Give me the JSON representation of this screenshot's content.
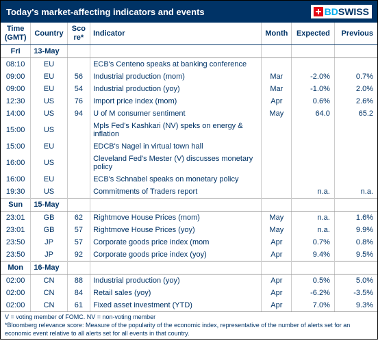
{
  "header": {
    "title": "Today's market-affecting indicators and events",
    "logo_bd": "BD",
    "logo_swiss": "SWISS"
  },
  "columns": {
    "time": "Time (GMT)",
    "country": "Country",
    "score": "Sco  re*",
    "indicator": "Indicator",
    "month": "Month",
    "expected": "Expected",
    "previous": "Previous"
  },
  "sections": [
    {
      "day_label": "Fri",
      "date_label": "13-May",
      "rows": [
        {
          "time": "08:10",
          "country": "EU",
          "score": "",
          "indicator": "ECB's Centeno speaks at banking conference",
          "month": "",
          "expected": "",
          "previous": ""
        },
        {
          "time": "09:00",
          "country": "EU",
          "score": "56",
          "indicator": "Industrial production (mom)",
          "month": "Mar",
          "expected": "-2.0%",
          "previous": "0.7%"
        },
        {
          "time": "09:00",
          "country": "EU",
          "score": "54",
          "indicator": "Industrial production (yoy)",
          "month": "Mar",
          "expected": "-1.0%",
          "previous": "2.0%"
        },
        {
          "time": "12:30",
          "country": "US",
          "score": "76",
          "indicator": "Import price index (mom)",
          "month": "Apr",
          "expected": "0.6%",
          "previous": "2.6%"
        },
        {
          "time": "14:00",
          "country": "US",
          "score": "94",
          "indicator": "U of M consumer sentiment",
          "month": "May",
          "expected": "64.0",
          "previous": "65.2"
        },
        {
          "time": "15:00",
          "country": "US",
          "score": "",
          "indicator": "Mpls Fed's Kashkari (NV) speks on energy & inflation",
          "month": "",
          "expected": "",
          "previous": ""
        },
        {
          "time": "15:00",
          "country": "EU",
          "score": "",
          "indicator": "EDCB's Nagel in virtual town hall",
          "month": "",
          "expected": "",
          "previous": ""
        },
        {
          "time": "16:00",
          "country": "US",
          "score": "",
          "indicator": "Cleveland Fed's Mester (V) discusses monetary policy",
          "month": "",
          "expected": "",
          "previous": ""
        },
        {
          "time": "16:00",
          "country": "EU",
          "score": "",
          "indicator": "ECB's Schnabel speaks on monetary policy",
          "month": "",
          "expected": "",
          "previous": ""
        },
        {
          "time": "19:30",
          "country": "US",
          "score": "",
          "indicator": "Commitments of Traders  report",
          "month": "",
          "expected": "n.a.",
          "previous": "n.a."
        }
      ]
    },
    {
      "day_label": "Sun",
      "date_label": "15-May",
      "rows": [
        {
          "time": "23:01",
          "country": "GB",
          "score": "62",
          "indicator": "Rightmove House Prices (mom)",
          "month": "May",
          "expected": "n.a.",
          "previous": "1.6%"
        },
        {
          "time": "23:01",
          "country": "GB",
          "score": "57",
          "indicator": "Rightmove House Prices (yoy)",
          "month": "May",
          "expected": "n.a.",
          "previous": "9.9%"
        },
        {
          "time": "23:50",
          "country": "JP",
          "score": "57",
          "indicator": "Corporate goods price index (mom",
          "month": "Apr",
          "expected": "0.7%",
          "previous": "0.8%"
        },
        {
          "time": "23:50",
          "country": "JP",
          "score": "92",
          "indicator": "Corporate goods price index (yoy)",
          "month": "Apr",
          "expected": "9.4%",
          "previous": "9.5%"
        }
      ]
    },
    {
      "day_label": "Mon",
      "date_label": "16-May",
      "rows": [
        {
          "time": "02:00",
          "country": "CN",
          "score": "88",
          "indicator": "Industrial production (yoy)",
          "month": "Apr",
          "expected": "0.5%",
          "previous": "5.0%"
        },
        {
          "time": "02:00",
          "country": "CN",
          "score": "84",
          "indicator": "Retail sales (yoy)",
          "month": "Apr",
          "expected": "-6.2%",
          "previous": "-3.5%"
        },
        {
          "time": "02:00",
          "country": "CN",
          "score": "61",
          "indicator": "Fixed asset investment (YTD)",
          "month": "Apr",
          "expected": "7.0%",
          "previous": "9.3%"
        }
      ]
    }
  ],
  "footnotes": {
    "line1": "V = voting member of FOMC. NV = non-voting member",
    "line2": "*Bloomberg relevance score:  Measure of the popularity of the economic index, representative of the number of alerts set for an economic event relative to all alerts set for all events in that country."
  }
}
